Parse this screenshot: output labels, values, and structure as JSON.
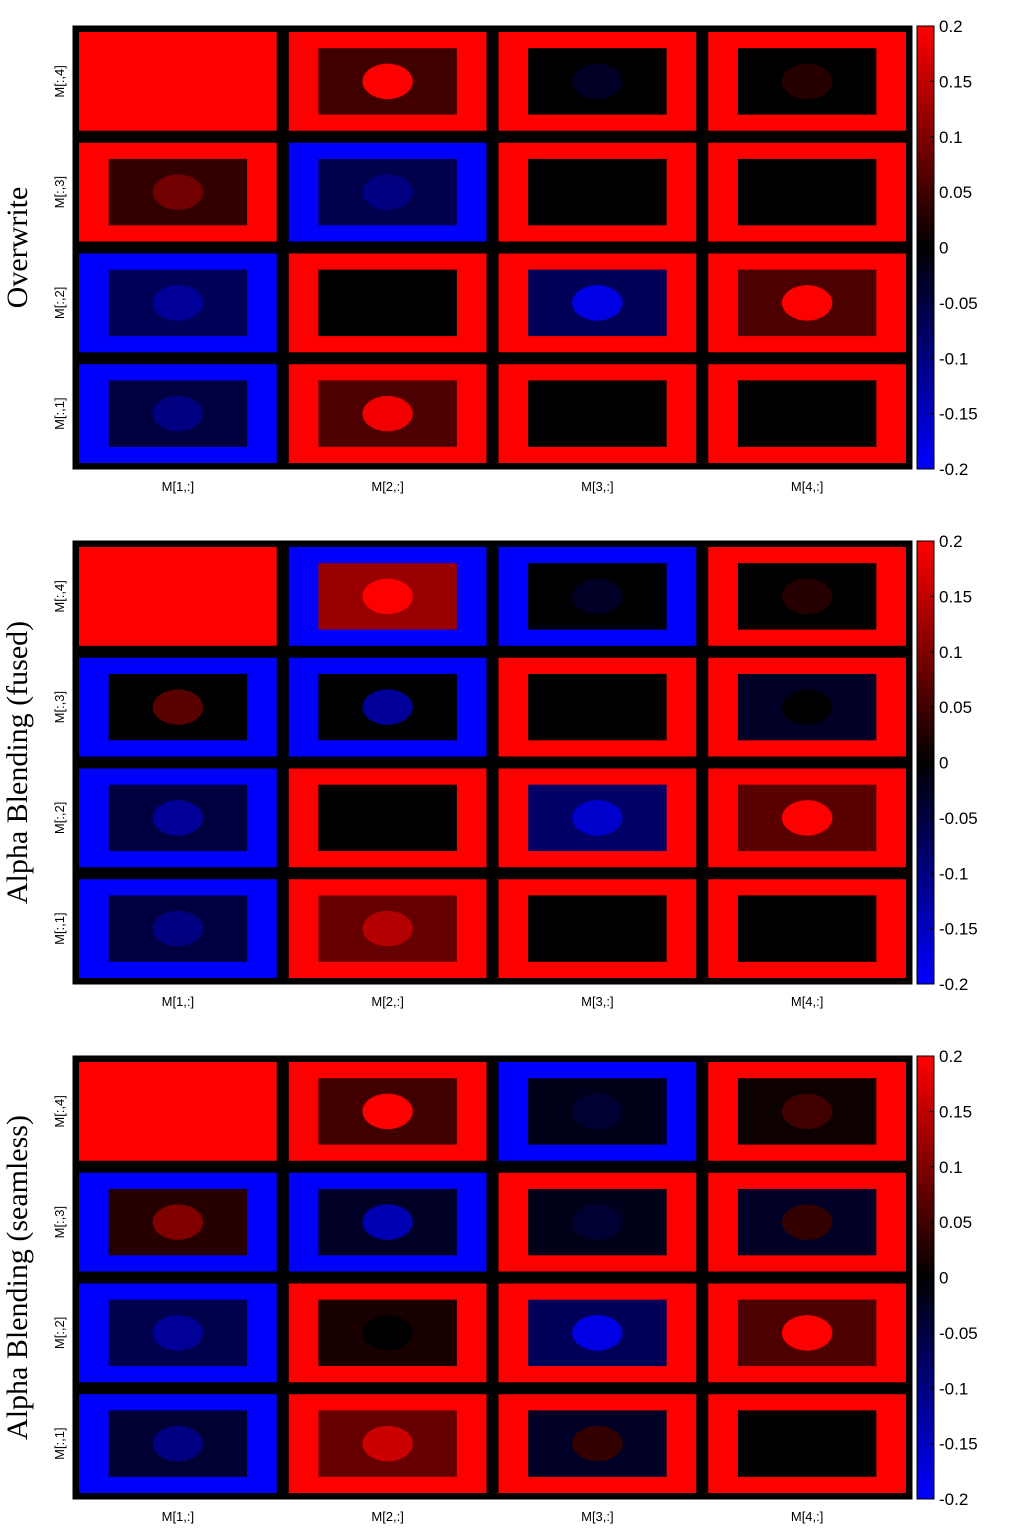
{
  "chart_data": [
    {
      "type": "heatmap",
      "title": "Overwrite",
      "x_tick_labels": [
        "M[1,:]",
        "M[2,:]",
        "M[3,:]",
        "M[4,:]"
      ],
      "y_tick_labels": [
        "M[:,1]",
        "M[:,2]",
        "M[:,3]",
        "M[:,4]"
      ],
      "colorbar": {
        "ticks": [
          "0.2",
          "0.15",
          "0.1",
          "0.05",
          "0",
          "-0.05",
          "-0.1",
          "-0.15",
          "-0.2"
        ],
        "range": [
          -0.2,
          0.2
        ]
      },
      "blocks": [
        {
          "row": "M[:,4]",
          "col": "M[1,:]",
          "outer": 0.2,
          "inner": 0.2,
          "center": 0.2
        },
        {
          "row": "M[:,4]",
          "col": "M[2,:]",
          "outer": 0.2,
          "inner": 0.05,
          "center": 0.2
        },
        {
          "row": "M[:,4]",
          "col": "M[3,:]",
          "outer": 0.2,
          "inner": 0.0,
          "center": -0.03
        },
        {
          "row": "M[:,4]",
          "col": "M[4,:]",
          "outer": 0.2,
          "inner": 0.0,
          "center": 0.03
        },
        {
          "row": "M[:,3]",
          "col": "M[1,:]",
          "outer": 0.2,
          "inner": 0.04,
          "center": 0.09
        },
        {
          "row": "M[:,3]",
          "col": "M[2,:]",
          "outer": -0.2,
          "inner": -0.06,
          "center": -0.1
        },
        {
          "row": "M[:,3]",
          "col": "M[3,:]",
          "outer": 0.2,
          "inner": 0.0,
          "center": 0.0
        },
        {
          "row": "M[:,3]",
          "col": "M[4,:]",
          "outer": 0.2,
          "inner": 0.0,
          "center": 0.0
        },
        {
          "row": "M[:,2]",
          "col": "M[1,:]",
          "outer": -0.2,
          "inner": -0.07,
          "center": -0.12
        },
        {
          "row": "M[:,2]",
          "col": "M[2,:]",
          "outer": 0.2,
          "inner": 0.0,
          "center": 0.0
        },
        {
          "row": "M[:,2]",
          "col": "M[3,:]",
          "outer": 0.2,
          "inner": -0.07,
          "center": -0.18
        },
        {
          "row": "M[:,2]",
          "col": "M[4,:]",
          "outer": 0.2,
          "inner": 0.06,
          "center": 0.2
        },
        {
          "row": "M[:,1]",
          "col": "M[1,:]",
          "outer": -0.2,
          "inner": -0.05,
          "center": -0.1
        },
        {
          "row": "M[:,1]",
          "col": "M[2,:]",
          "outer": 0.2,
          "inner": 0.06,
          "center": 0.19
        },
        {
          "row": "M[:,1]",
          "col": "M[3,:]",
          "outer": 0.2,
          "inner": 0.0,
          "center": 0.0
        },
        {
          "row": "M[:,1]",
          "col": "M[4,:]",
          "outer": 0.2,
          "inner": 0.0,
          "center": 0.0
        }
      ]
    },
    {
      "type": "heatmap",
      "title": "Alpha Blending (fused)",
      "x_tick_labels": [
        "M[1,:]",
        "M[2,:]",
        "M[3,:]",
        "M[4,:]"
      ],
      "y_tick_labels": [
        "M[:,1]",
        "M[:,2]",
        "M[:,3]",
        "M[:,4]"
      ],
      "colorbar": {
        "ticks": [
          "0.2",
          "0.15",
          "0.1",
          "0.05",
          "0",
          "-0.05",
          "-0.1",
          "-0.15",
          "-0.2"
        ],
        "range": [
          -0.2,
          0.2
        ]
      },
      "blocks": [
        {
          "row": "M[:,4]",
          "col": "M[1,:]",
          "outer": 0.2,
          "inner": 0.2,
          "center": 0.2
        },
        {
          "row": "M[:,4]",
          "col": "M[2,:]",
          "outer": -0.2,
          "inner": 0.12,
          "center": 0.2
        },
        {
          "row": "M[:,4]",
          "col": "M[3,:]",
          "outer": -0.2,
          "inner": 0.0,
          "center": -0.03
        },
        {
          "row": "M[:,4]",
          "col": "M[4,:]",
          "outer": 0.2,
          "inner": 0.0,
          "center": 0.03
        },
        {
          "row": "M[:,3]",
          "col": "M[1,:]",
          "outer": -0.2,
          "inner": 0.0,
          "center": 0.07
        },
        {
          "row": "M[:,3]",
          "col": "M[2,:]",
          "outer": -0.2,
          "inner": 0.0,
          "center": -0.12
        },
        {
          "row": "M[:,3]",
          "col": "M[3,:]",
          "outer": 0.2,
          "inner": 0.0,
          "center": 0.0
        },
        {
          "row": "M[:,3]",
          "col": "M[4,:]",
          "outer": 0.2,
          "inner": -0.03,
          "center": 0.0
        },
        {
          "row": "M[:,2]",
          "col": "M[1,:]",
          "outer": -0.2,
          "inner": -0.05,
          "center": -0.12
        },
        {
          "row": "M[:,2]",
          "col": "M[2,:]",
          "outer": 0.2,
          "inner": 0.0,
          "center": 0.0
        },
        {
          "row": "M[:,2]",
          "col": "M[3,:]",
          "outer": 0.2,
          "inner": -0.08,
          "center": -0.16
        },
        {
          "row": "M[:,2]",
          "col": "M[4,:]",
          "outer": 0.2,
          "inner": 0.07,
          "center": 0.2
        },
        {
          "row": "M[:,1]",
          "col": "M[1,:]",
          "outer": -0.2,
          "inner": -0.05,
          "center": -0.1
        },
        {
          "row": "M[:,1]",
          "col": "M[2,:]",
          "outer": 0.2,
          "inner": 0.08,
          "center": 0.14
        },
        {
          "row": "M[:,1]",
          "col": "M[3,:]",
          "outer": 0.2,
          "inner": 0.0,
          "center": 0.0
        },
        {
          "row": "M[:,1]",
          "col": "M[4,:]",
          "outer": 0.2,
          "inner": 0.0,
          "center": 0.0
        }
      ]
    },
    {
      "type": "heatmap",
      "title": "Alpha Blending (seamless)",
      "x_tick_labels": [
        "M[1,:]",
        "M[2,:]",
        "M[3,:]",
        "M[4,:]"
      ],
      "y_tick_labels": [
        "M[:,1]",
        "M[:,2]",
        "M[:,3]",
        "M[:,4]"
      ],
      "colorbar": {
        "ticks": [
          "0.2",
          "0.15",
          "0.1",
          "0.05",
          "0",
          "-0.05",
          "-0.1",
          "-0.15",
          "-0.2"
        ],
        "range": [
          -0.2,
          0.2
        ]
      },
      "blocks": [
        {
          "row": "M[:,4]",
          "col": "M[1,:]",
          "outer": 0.2,
          "inner": 0.2,
          "center": 0.2
        },
        {
          "row": "M[:,4]",
          "col": "M[2,:]",
          "outer": 0.2,
          "inner": 0.05,
          "center": 0.2
        },
        {
          "row": "M[:,4]",
          "col": "M[3,:]",
          "outer": -0.2,
          "inner": -0.02,
          "center": -0.04
        },
        {
          "row": "M[:,4]",
          "col": "M[4,:]",
          "outer": 0.2,
          "inner": 0.01,
          "center": 0.05
        },
        {
          "row": "M[:,3]",
          "col": "M[1,:]",
          "outer": -0.2,
          "inner": 0.03,
          "center": 0.1
        },
        {
          "row": "M[:,3]",
          "col": "M[2,:]",
          "outer": -0.2,
          "inner": -0.03,
          "center": -0.14
        },
        {
          "row": "M[:,3]",
          "col": "M[3,:]",
          "outer": 0.2,
          "inner": -0.02,
          "center": -0.04
        },
        {
          "row": "M[:,3]",
          "col": "M[4,:]",
          "outer": 0.2,
          "inner": -0.03,
          "center": 0.04
        },
        {
          "row": "M[:,2]",
          "col": "M[1,:]",
          "outer": -0.2,
          "inner": -0.06,
          "center": -0.12
        },
        {
          "row": "M[:,2]",
          "col": "M[2,:]",
          "outer": 0.2,
          "inner": 0.02,
          "center": 0.0
        },
        {
          "row": "M[:,2]",
          "col": "M[3,:]",
          "outer": 0.2,
          "inner": -0.07,
          "center": -0.18
        },
        {
          "row": "M[:,2]",
          "col": "M[4,:]",
          "outer": 0.2,
          "inner": 0.06,
          "center": 0.2
        },
        {
          "row": "M[:,1]",
          "col": "M[1,:]",
          "outer": -0.2,
          "inner": -0.04,
          "center": -0.1
        },
        {
          "row": "M[:,1]",
          "col": "M[2,:]",
          "outer": 0.2,
          "inner": 0.08,
          "center": 0.16
        },
        {
          "row": "M[:,1]",
          "col": "M[3,:]",
          "outer": 0.2,
          "inner": -0.03,
          "center": 0.04
        },
        {
          "row": "M[:,1]",
          "col": "M[4,:]",
          "outer": 0.2,
          "inner": 0.0,
          "center": 0.0
        }
      ]
    }
  ]
}
